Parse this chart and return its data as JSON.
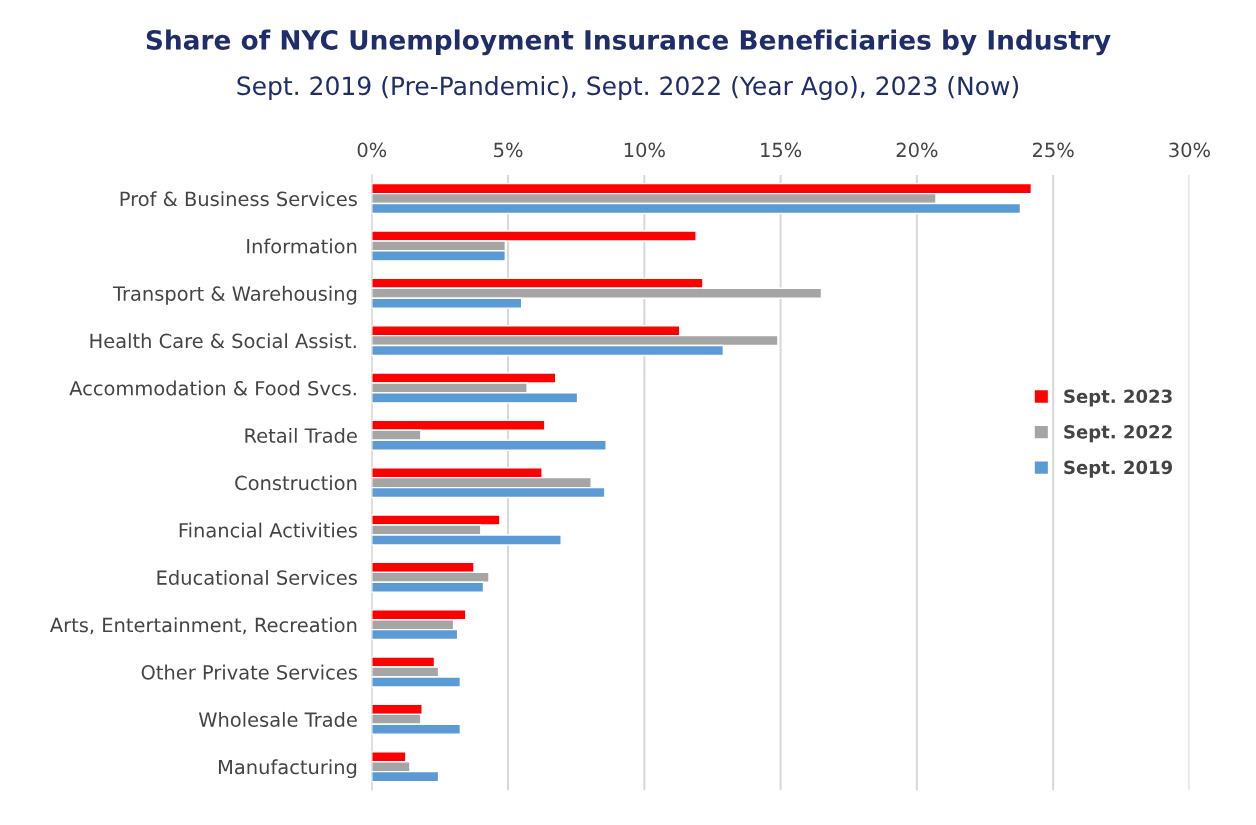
{
  "chart_data": {
    "type": "bar",
    "orientation": "horizontal",
    "title": "Share of NYC Unemployment Insurance Beneficiaries by Industry",
    "subtitle": "Sept. 2019 (Pre-Pandemic), Sept. 2022 (Year Ago), 2023 (Now)",
    "categories": [
      "Prof & Business Services",
      "Information",
      "Transport & Warehousing",
      "Health Care & Social Assist.",
      "Accommodation & Food Svcs.",
      "Retail Trade",
      "Construction",
      "Financial Activities",
      "Educational Services",
      "Arts, Entertainment, Recreation",
      "Other Private Services",
      "Wholesale Trade",
      "Manufacturing"
    ],
    "series": [
      {
        "name": "Sept. 2023",
        "color": "#ff0000",
        "values": [
          24.2,
          11.9,
          12.15,
          11.3,
          6.75,
          6.35,
          6.25,
          4.7,
          3.75,
          3.45,
          2.3,
          1.85,
          1.25
        ]
      },
      {
        "name": "Sept. 2022",
        "color": "#a5a5a5",
        "values": [
          20.7,
          4.9,
          16.5,
          14.9,
          5.7,
          1.8,
          8.05,
          4.0,
          4.3,
          3.0,
          2.45,
          1.8,
          1.4
        ]
      },
      {
        "name": "Sept. 2019",
        "color": "#5b9bd5",
        "values": [
          23.8,
          4.9,
          5.5,
          12.9,
          7.55,
          8.6,
          8.55,
          6.95,
          4.1,
          3.15,
          3.25,
          3.25,
          2.45
        ]
      }
    ],
    "xlim": [
      0,
      30
    ],
    "xticks": [
      {
        "value": 0,
        "label": "0%"
      },
      {
        "value": 5,
        "label": "5%"
      },
      {
        "value": 10,
        "label": "10%"
      },
      {
        "value": 15,
        "label": "15%"
      },
      {
        "value": 20,
        "label": "20%"
      },
      {
        "value": 25,
        "label": "25%"
      },
      {
        "value": 30,
        "label": "30%"
      }
    ],
    "grid": "x",
    "legend": "right"
  }
}
